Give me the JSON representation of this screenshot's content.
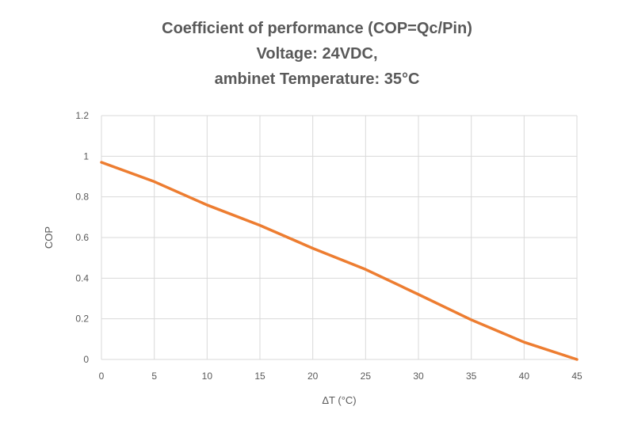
{
  "chart_data": {
    "type": "line",
    "title": [
      "Coefficient of performance (COP=Qc/Pin)",
      "Voltage: 24VDC,",
      "ambinet Temperature: 35°C"
    ],
    "xlabel": "ΔT (°C)",
    "ylabel": "COP",
    "xlim": [
      0,
      45
    ],
    "ylim": [
      0,
      1.2
    ],
    "xticks": [
      0,
      5,
      10,
      15,
      20,
      25,
      30,
      35,
      40,
      45
    ],
    "yticks": [
      0,
      0.2,
      0.4,
      0.6,
      0.8,
      1,
      1.2
    ],
    "grid": true,
    "legend": "none",
    "series": [
      {
        "name": "COP",
        "color": "#ED7D31",
        "x": [
          0,
          5,
          10,
          15,
          20,
          25,
          30,
          35,
          40,
          45
        ],
        "y": [
          0.97,
          0.875,
          0.76,
          0.66,
          0.547,
          0.443,
          0.32,
          0.195,
          0.085,
          0.0
        ]
      }
    ]
  }
}
